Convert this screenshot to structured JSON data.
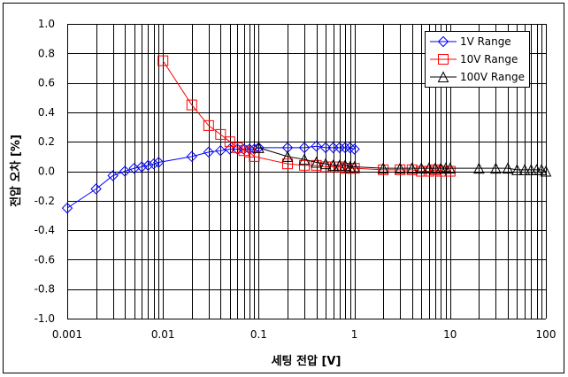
{
  "chart_data": {
    "type": "line",
    "title": "",
    "xlabel": "세팅 전압 [V]",
    "ylabel": "전압 오차 [%]",
    "xscale": "log",
    "xlim": [
      0.001,
      100
    ],
    "ylim": [
      -1.0,
      1.0
    ],
    "x_ticks": [
      "0.001",
      "0.01",
      "0.1",
      "1",
      "10",
      "100"
    ],
    "y_ticks": [
      "-1.0",
      "-0.8",
      "-0.6",
      "-0.4",
      "-0.2",
      "0.0",
      "0.2",
      "0.4",
      "0.6",
      "0.8",
      "1.0"
    ],
    "grid": true,
    "legend_position": "top-right",
    "series": [
      {
        "name": "1V Range",
        "color": "#0000ff",
        "marker": "diamond",
        "x": [
          0.001,
          0.002,
          0.003,
          0.004,
          0.005,
          0.006,
          0.007,
          0.008,
          0.009,
          0.02,
          0.03,
          0.04,
          0.05,
          0.06,
          0.07,
          0.08,
          0.09,
          0.1,
          0.2,
          0.3,
          0.4,
          0.5,
          0.6,
          0.7,
          0.8,
          0.9,
          1
        ],
        "y": [
          -0.25,
          -0.12,
          -0.03,
          0.0,
          0.02,
          0.03,
          0.04,
          0.05,
          0.06,
          0.1,
          0.13,
          0.14,
          0.15,
          0.15,
          0.15,
          0.15,
          0.15,
          0.16,
          0.16,
          0.16,
          0.17,
          0.16,
          0.16,
          0.16,
          0.16,
          0.16,
          0.15
        ]
      },
      {
        "name": "10V Range",
        "color": "#ff0000",
        "marker": "square",
        "x": [
          0.01,
          0.02,
          0.03,
          0.04,
          0.05,
          0.06,
          0.07,
          0.08,
          0.09,
          0.2,
          0.3,
          0.4,
          0.5,
          0.6,
          0.7,
          0.8,
          0.9,
          1,
          2,
          3,
          4,
          5,
          6,
          7,
          8,
          9,
          10
        ],
        "y": [
          0.75,
          0.45,
          0.31,
          0.25,
          0.2,
          0.16,
          0.14,
          0.13,
          0.1,
          0.05,
          0.04,
          0.04,
          0.03,
          0.03,
          0.03,
          0.02,
          0.02,
          0.02,
          0.01,
          0.01,
          0.01,
          0.0,
          0.0,
          0.01,
          0.0,
          0.0,
          0.0
        ]
      },
      {
        "name": "100V Range",
        "color": "#000000",
        "marker": "triangle",
        "x": [
          0.1,
          0.2,
          0.3,
          0.4,
          0.5,
          0.6,
          0.7,
          0.8,
          0.9,
          1,
          2,
          3,
          4,
          5,
          6,
          7,
          8,
          9,
          10,
          20,
          30,
          40,
          50,
          60,
          70,
          80,
          90,
          100
        ],
        "y": [
          0.16,
          0.1,
          0.08,
          0.06,
          0.05,
          0.04,
          0.04,
          0.04,
          0.03,
          0.03,
          0.02,
          0.02,
          0.02,
          0.02,
          0.02,
          0.02,
          0.02,
          0.02,
          0.02,
          0.02,
          0.02,
          0.02,
          0.01,
          0.01,
          0.01,
          0.01,
          0.01,
          0.0
        ]
      }
    ]
  }
}
